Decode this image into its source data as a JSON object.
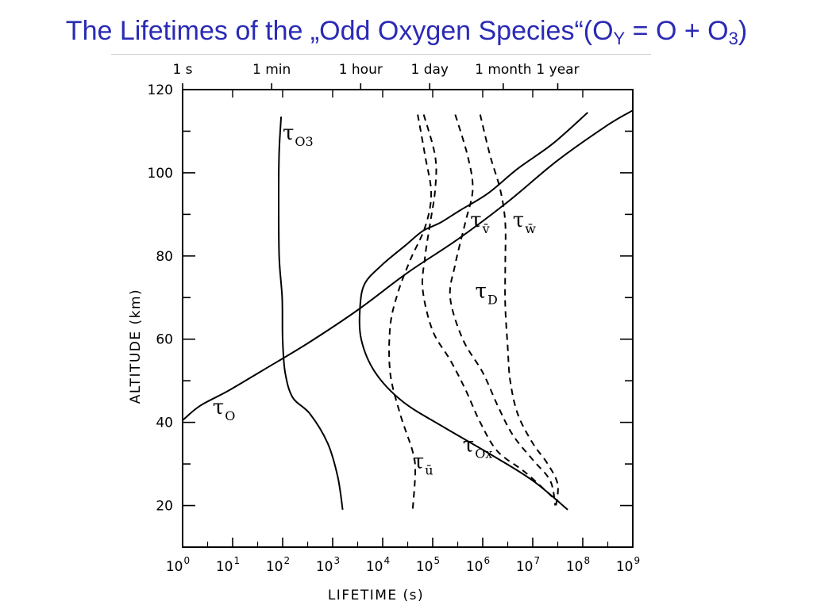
{
  "slide": {
    "title_main": "The Lifetimes of the „Odd Oxygen Species“(O",
    "title_sub_y": "Y",
    "title_mid": " = O + O",
    "title_sub_3": "3",
    "title_end": ")"
  },
  "chart_data": {
    "type": "line",
    "xlabel": "LIFETIME (s)",
    "ylabel": "ALTITUDE (km)",
    "xscale": "log",
    "xlim_log10": [
      0,
      9
    ],
    "ylim": [
      10,
      120
    ],
    "x_ticks": [
      {
        "exp": 0,
        "label": "10",
        "sup": "0"
      },
      {
        "exp": 1,
        "label": "10",
        "sup": "1"
      },
      {
        "exp": 2,
        "label": "10",
        "sup": "2"
      },
      {
        "exp": 3,
        "label": "10",
        "sup": "3"
      },
      {
        "exp": 4,
        "label": "10",
        "sup": "4"
      },
      {
        "exp": 5,
        "label": "10",
        "sup": "5"
      },
      {
        "exp": 6,
        "label": "10",
        "sup": "6"
      },
      {
        "exp": 7,
        "label": "10",
        "sup": "7"
      },
      {
        "exp": 8,
        "label": "10",
        "sup": "8"
      },
      {
        "exp": 9,
        "label": "10",
        "sup": "9"
      }
    ],
    "y_ticks": [
      20,
      40,
      60,
      80,
      100,
      120
    ],
    "top_axis": [
      {
        "label": "1 s",
        "log10_seconds": 0
      },
      {
        "label": "1 min",
        "log10_seconds": 1.78
      },
      {
        "label": "1 hour",
        "log10_seconds": 3.56
      },
      {
        "label": "1 day",
        "log10_seconds": 4.94
      },
      {
        "label": "1 month",
        "log10_seconds": 6.41
      },
      {
        "label": "1 year",
        "log10_seconds": 7.5
      }
    ],
    "series": [
      {
        "name": "τO",
        "style": "solid",
        "label_pos": [
          0.6,
          42
        ],
        "points": [
          [
            0,
            40.5
          ],
          [
            0.35,
            44
          ],
          [
            0.9,
            47.5
          ],
          [
            1.6,
            52.5
          ],
          [
            2.5,
            59
          ],
          [
            3.5,
            67
          ],
          [
            4.5,
            76
          ],
          [
            5.5,
            84
          ],
          [
            6.5,
            93
          ],
          [
            7.5,
            103
          ],
          [
            8.5,
            111.5
          ],
          [
            9.0,
            115
          ]
        ]
      },
      {
        "name": "τO3",
        "style": "solid",
        "label_pos": [
          2.0,
          108
        ],
        "points": [
          [
            1.97,
            113.5
          ],
          [
            1.93,
            105
          ],
          [
            1.92,
            95
          ],
          [
            1.93,
            80
          ],
          [
            1.99,
            70
          ],
          [
            2.0,
            60
          ],
          [
            2.05,
            52
          ],
          [
            2.2,
            46
          ],
          [
            2.55,
            42
          ],
          [
            2.9,
            35
          ],
          [
            3.1,
            27
          ],
          [
            3.2,
            19
          ]
        ]
      },
      {
        "name": "τOx",
        "style": "solid",
        "label_pos": [
          5.6,
          33
        ],
        "points": [
          [
            8.1,
            114.5
          ],
          [
            7.4,
            107
          ],
          [
            6.7,
            101
          ],
          [
            6.1,
            95
          ],
          [
            5.55,
            91
          ],
          [
            5.15,
            88
          ],
          [
            4.8,
            86
          ],
          [
            4.45,
            82.5
          ],
          [
            4.0,
            78
          ],
          [
            3.65,
            73.5
          ],
          [
            3.55,
            68
          ],
          [
            3.57,
            60
          ],
          [
            3.85,
            52
          ],
          [
            4.4,
            45
          ],
          [
            5.2,
            39
          ],
          [
            6.2,
            32
          ],
          [
            7.0,
            26
          ],
          [
            7.7,
            19
          ]
        ]
      },
      {
        "name": "τū",
        "style": "dashed",
        "label_pos": [
          4.6,
          29
        ],
        "points": [
          [
            4.7,
            114
          ],
          [
            4.85,
            104
          ],
          [
            4.97,
            95
          ],
          [
            4.85,
            87
          ],
          [
            4.55,
            79
          ],
          [
            4.3,
            71
          ],
          [
            4.15,
            63
          ],
          [
            4.15,
            52
          ],
          [
            4.35,
            42
          ],
          [
            4.6,
            33
          ],
          [
            4.65,
            28
          ],
          [
            4.6,
            19
          ]
        ]
      },
      {
        "name": "τv̄",
        "style": "dashed",
        "label_pos": [
          5.75,
          87
        ],
        "points": [
          [
            4.82,
            114
          ],
          [
            5.05,
            104
          ],
          [
            5.05,
            96
          ],
          [
            4.95,
            88
          ],
          [
            4.85,
            80
          ],
          [
            4.8,
            72
          ],
          [
            5.0,
            62
          ],
          [
            5.35,
            55
          ],
          [
            5.65,
            48
          ],
          [
            5.95,
            40
          ],
          [
            6.3,
            33
          ],
          [
            6.85,
            28
          ],
          [
            7.4,
            22
          ]
        ]
      },
      {
        "name": "τD",
        "style": "dashed",
        "label_pos": [
          5.85,
          70
        ],
        "points": [
          [
            5.45,
            114
          ],
          [
            5.7,
            104
          ],
          [
            5.8,
            96
          ],
          [
            5.65,
            88
          ],
          [
            5.45,
            78
          ],
          [
            5.35,
            70
          ],
          [
            5.6,
            60
          ],
          [
            6.0,
            52
          ],
          [
            6.3,
            44
          ],
          [
            6.6,
            37
          ],
          [
            7.0,
            31
          ],
          [
            7.35,
            26
          ],
          [
            7.45,
            20
          ]
        ]
      },
      {
        "name": "τw̄",
        "style": "dashed",
        "label_pos": [
          6.6,
          87
        ],
        "points": [
          [
            5.95,
            114
          ],
          [
            6.15,
            104
          ],
          [
            6.35,
            96
          ],
          [
            6.45,
            88
          ],
          [
            6.45,
            78
          ],
          [
            6.45,
            68
          ],
          [
            6.5,
            58
          ],
          [
            6.55,
            50
          ],
          [
            6.7,
            42
          ],
          [
            7.0,
            35
          ],
          [
            7.3,
            30
          ],
          [
            7.5,
            25
          ],
          [
            7.45,
            19
          ]
        ]
      }
    ]
  }
}
